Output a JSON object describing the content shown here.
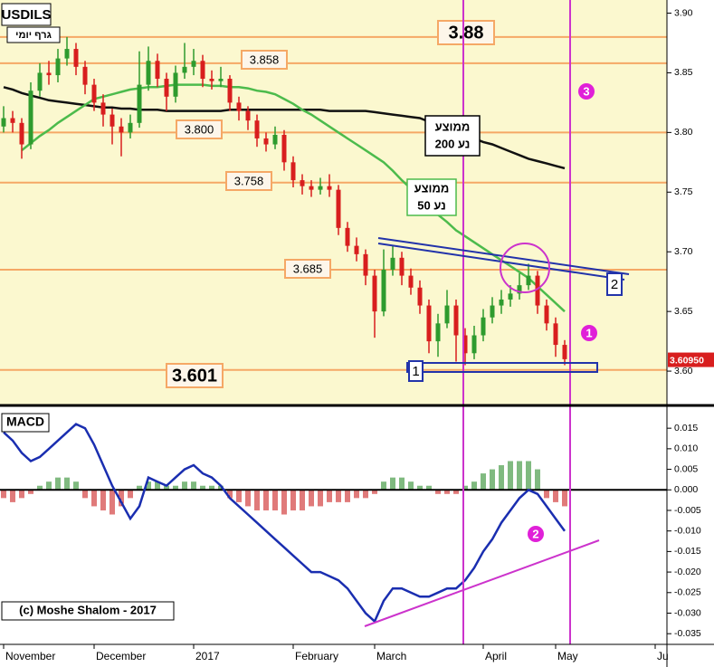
{
  "chart_data": [
    {
      "type": "candlestick",
      "title": "USDILS",
      "subtitle": "גרף יומי",
      "ylim": [
        3.572,
        3.911
      ],
      "yticks": [
        {
          "value": 3.6,
          "label": "3.60"
        },
        3.65,
        {
          "value": 3.7,
          "label": "3.70"
        },
        3.75,
        {
          "value": 3.8,
          "label": "3.80"
        },
        3.85,
        {
          "value": 3.9,
          "label": "3.90"
        }
      ],
      "up_color": "#2e9b2e",
      "down_color": "#d81e1e",
      "candles": [
        [
          3.805,
          3.822,
          3.8,
          3.812
        ],
        [
          3.812,
          3.818,
          3.8,
          3.808
        ],
        [
          3.808,
          3.812,
          3.778,
          3.79
        ],
        [
          3.79,
          3.842,
          3.786,
          3.835
        ],
        [
          3.835,
          3.858,
          3.83,
          3.85
        ],
        [
          3.85,
          3.86,
          3.84,
          3.848
        ],
        [
          3.848,
          3.87,
          3.842,
          3.862
        ],
        [
          3.862,
          3.88,
          3.856,
          3.87
        ],
        [
          3.87,
          3.875,
          3.848,
          3.855
        ],
        [
          3.855,
          3.86,
          3.832,
          3.84
        ],
        [
          3.84,
          3.845,
          3.818,
          3.825
        ],
        [
          3.825,
          3.832,
          3.805,
          3.815
        ],
        [
          3.815,
          3.82,
          3.79,
          3.805
        ],
        [
          3.805,
          3.812,
          3.78,
          3.8
        ],
        [
          3.8,
          3.815,
          3.795,
          3.808
        ],
        [
          3.808,
          3.868,
          3.804,
          3.84
        ],
        [
          3.84,
          3.872,
          3.835,
          3.86
        ],
        [
          3.86,
          3.866,
          3.838,
          3.845
        ],
        [
          3.845,
          3.85,
          3.818,
          3.83
        ],
        [
          3.83,
          3.856,
          3.825,
          3.85
        ],
        [
          3.85,
          3.875,
          3.845,
          3.855
        ],
        [
          3.855,
          3.87,
          3.848,
          3.86
        ],
        [
          3.86,
          3.865,
          3.838,
          3.845
        ],
        [
          3.845,
          3.852,
          3.836,
          3.843
        ],
        [
          3.843,
          3.855,
          3.838,
          3.845
        ],
        [
          3.845,
          3.848,
          3.818,
          3.825
        ],
        [
          3.825,
          3.83,
          3.81,
          3.818
        ],
        [
          3.818,
          3.822,
          3.802,
          3.81
        ],
        [
          3.81,
          3.815,
          3.788,
          3.795
        ],
        [
          3.795,
          3.8,
          3.784,
          3.79
        ],
        [
          3.79,
          3.805,
          3.786,
          3.798
        ],
        [
          3.798,
          3.802,
          3.768,
          3.775
        ],
        [
          3.775,
          3.78,
          3.754,
          3.76
        ],
        [
          3.76,
          3.765,
          3.748,
          3.755
        ],
        [
          3.755,
          3.76,
          3.746,
          3.752
        ],
        [
          3.752,
          3.762,
          3.748,
          3.755
        ],
        [
          3.755,
          3.765,
          3.746,
          3.752
        ],
        [
          3.752,
          3.756,
          3.714,
          3.72
        ],
        [
          3.72,
          3.725,
          3.7,
          3.705
        ],
        [
          3.705,
          3.712,
          3.692,
          3.698
        ],
        [
          3.698,
          3.702,
          3.672,
          3.68
        ],
        [
          3.68,
          3.685,
          3.628,
          3.65
        ],
        [
          3.65,
          3.702,
          3.646,
          3.685
        ],
        [
          3.685,
          3.705,
          3.68,
          3.695
        ],
        [
          3.695,
          3.7,
          3.672,
          3.68
        ],
        [
          3.68,
          3.686,
          3.664,
          3.67
        ],
        [
          3.67,
          3.676,
          3.648,
          3.655
        ],
        [
          3.655,
          3.66,
          3.615,
          3.625
        ],
        [
          3.625,
          3.648,
          3.612,
          3.64
        ],
        [
          3.64,
          3.668,
          3.636,
          3.655
        ],
        [
          3.655,
          3.66,
          3.608,
          3.63
        ],
        [
          3.63,
          3.636,
          3.605,
          3.615
        ],
        [
          3.615,
          3.638,
          3.61,
          3.63
        ],
        [
          3.63,
          3.652,
          3.625,
          3.645
        ],
        [
          3.645,
          3.662,
          3.64,
          3.655
        ],
        [
          3.655,
          3.668,
          3.648,
          3.66
        ],
        [
          3.66,
          3.672,
          3.654,
          3.665
        ],
        [
          3.665,
          3.682,
          3.66,
          3.672
        ],
        [
          3.672,
          3.69,
          3.668,
          3.68
        ],
        [
          3.68,
          3.684,
          3.648,
          3.655
        ],
        [
          3.655,
          3.66,
          3.634,
          3.64
        ],
        [
          3.64,
          3.645,
          3.612,
          3.622
        ],
        [
          3.622,
          3.626,
          3.605,
          3.61
        ]
      ],
      "lines": [
        {
          "label": [
            "ממוצע",
            "נע 200"
          ],
          "color": "#111111",
          "values": [
            3.838,
            3.836,
            3.833,
            3.831,
            3.829,
            3.827,
            3.826,
            3.825,
            3.824,
            3.823,
            3.822,
            3.821,
            3.821,
            3.82,
            3.82,
            3.819,
            3.819,
            3.819,
            3.818,
            3.818,
            3.818,
            3.818,
            3.818,
            3.818,
            3.818,
            3.819,
            3.819,
            3.819,
            3.819,
            3.819,
            3.819,
            3.819,
            3.819,
            3.819,
            3.819,
            3.819,
            3.818,
            3.818,
            3.818,
            3.818,
            3.818,
            3.817,
            3.816,
            3.815,
            3.814,
            3.813,
            3.812,
            3.809,
            3.806,
            3.803,
            3.8,
            3.798,
            3.795,
            3.792,
            3.79,
            3.787,
            3.784,
            3.781,
            3.778,
            3.776,
            3.774,
            3.772,
            3.77
          ]
        },
        {
          "label": [
            "ממוצע",
            "נע 50"
          ],
          "color": "#4cbb4c",
          "values": [
            null,
            null,
            3.785,
            3.791,
            3.797,
            3.802,
            3.808,
            3.813,
            3.818,
            3.823,
            3.828,
            3.83,
            3.832,
            3.834,
            3.836,
            3.837,
            3.838,
            3.838,
            3.839,
            3.84,
            3.84,
            3.84,
            3.84,
            3.839,
            3.839,
            3.838,
            3.838,
            3.837,
            3.835,
            3.834,
            3.832,
            3.828,
            3.824,
            3.819,
            3.815,
            3.81,
            3.805,
            3.8,
            3.795,
            3.79,
            3.785,
            3.78,
            3.775,
            3.768,
            3.76,
            3.753,
            3.745,
            3.738,
            3.731,
            3.725,
            3.718,
            3.713,
            3.708,
            3.703,
            3.698,
            3.693,
            3.688,
            3.683,
            3.678,
            3.671,
            3.664,
            3.657,
            3.65
          ]
        }
      ],
      "levels": [
        {
          "value": 3.88,
          "label": "3.88"
        },
        {
          "value": 3.858,
          "label": "3.858"
        },
        {
          "value": 3.8,
          "label": "3.800"
        },
        {
          "value": 3.758,
          "label": "3.758"
        },
        {
          "value": 3.685,
          "label": "3.685"
        },
        {
          "value": 3.601,
          "label": "3.601"
        }
      ],
      "level_color": "#f5a866",
      "last_price": {
        "value": 3.6095,
        "label": "3.60950"
      },
      "boxed_labels": [
        "1",
        "2"
      ],
      "circled_labels": [
        "1",
        "3"
      ]
    },
    {
      "type": "macd",
      "title": "MACD",
      "copyright": "(c) Moshe Shalom - 2017",
      "ylim": [
        -0.0376,
        0.0201
      ],
      "yticks": [
        0.015,
        {
          "value": 0.01,
          "label": "0.010"
        },
        0.005,
        {
          "value": 0,
          "label": "0.000"
        },
        -0.005,
        {
          "value": -0.01,
          "label": "-0.010"
        },
        -0.015,
        {
          "value": -0.02,
          "label": "-0.020"
        },
        -0.025,
        {
          "value": -0.03,
          "label": "-0.030"
        },
        -0.035
      ],
      "xticks": [
        {
          "value": 0,
          "label": "November"
        },
        {
          "value": 10,
          "label": "December"
        },
        {
          "value": 21,
          "label": "2017"
        },
        {
          "value": 32,
          "label": "February"
        },
        {
          "value": 41,
          "label": "March"
        },
        {
          "value": 53,
          "label": "April"
        },
        {
          "value": 61,
          "label": "May"
        },
        {
          "value": 72,
          "label": "Ju"
        }
      ],
      "histogram": {
        "up_color": "#2a8c2a",
        "down_color": "#cc2222",
        "values": [
          -0.002,
          -0.003,
          -0.002,
          -0.001,
          0.001,
          0.002,
          0.003,
          0.003,
          0.002,
          -0.002,
          -0.004,
          -0.005,
          -0.006,
          -0.004,
          -0.002,
          0.001,
          0.002,
          0.002,
          0.001,
          0.001,
          0.002,
          0.002,
          0.001,
          0.001,
          0.001,
          -0.002,
          -0.003,
          -0.004,
          -0.005,
          -0.005,
          -0.005,
          -0.006,
          -0.005,
          -0.005,
          -0.004,
          -0.004,
          -0.003,
          -0.003,
          -0.003,
          -0.002,
          -0.002,
          -0.001,
          0.002,
          0.003,
          0.003,
          0.002,
          0.001,
          0.001,
          -0.001,
          -0.001,
          -0.001,
          0.001,
          0.002,
          0.004,
          0.005,
          0.006,
          0.007,
          0.007,
          0.007,
          0.005,
          -0.002,
          -0.003,
          -0.004
        ]
      },
      "line": {
        "color": "#1a2eb0",
        "values": [
          0.014,
          0.012,
          0.009,
          0.007,
          0.008,
          0.01,
          0.012,
          0.014,
          0.016,
          0.015,
          0.011,
          0.006,
          0.001,
          -0.003,
          -0.007,
          -0.004,
          0.003,
          0.002,
          0.001,
          0.003,
          0.005,
          0.006,
          0.004,
          0.003,
          0.001,
          -0.002,
          -0.004,
          -0.006,
          -0.008,
          -0.01,
          -0.012,
          -0.014,
          -0.016,
          -0.018,
          -0.02,
          -0.02,
          -0.021,
          -0.022,
          -0.024,
          -0.027,
          -0.03,
          -0.032,
          -0.027,
          -0.024,
          -0.024,
          -0.025,
          -0.026,
          -0.026,
          -0.025,
          -0.024,
          -0.024,
          -0.022,
          -0.019,
          -0.015,
          -0.012,
          -0.008,
          -0.005,
          -0.002,
          0,
          -0.001,
          -0.004,
          -0.007,
          -0.01
        ]
      },
      "circled_labels": [
        "2"
      ]
    }
  ]
}
